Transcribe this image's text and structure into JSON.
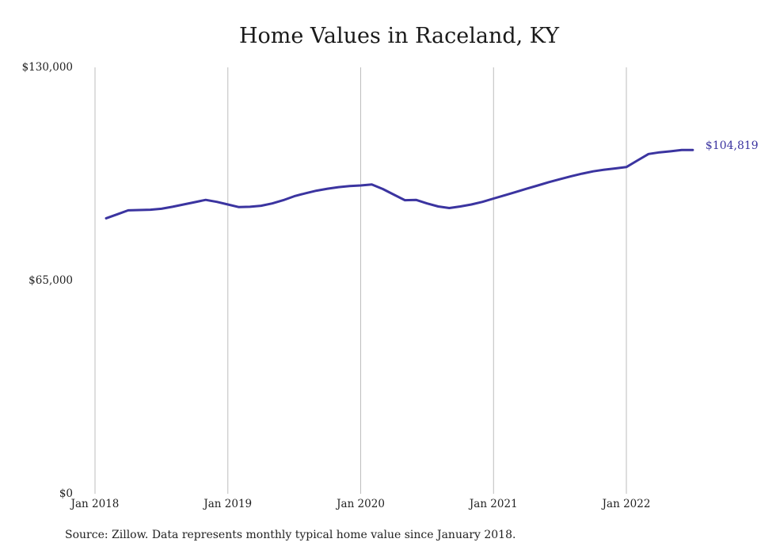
{
  "chart_data": {
    "type": "line",
    "title": "Home Values in Raceland, KY",
    "xlabel": "",
    "ylabel": "",
    "y_ticks": [
      "$0",
      "$65,000",
      "$130,000"
    ],
    "y_tick_values": [
      0,
      65000,
      130000
    ],
    "ylim": [
      0,
      130000
    ],
    "x_ticks": [
      "Jan 2018",
      "Jan 2019",
      "Jan 2020",
      "Jan 2021",
      "Jan 2022"
    ],
    "x_tick_dates": [
      "2018-01",
      "2019-01",
      "2020-01",
      "2021-01",
      "2022-01"
    ],
    "grid": "vertical",
    "line_color": "#3b34a0",
    "series": [
      {
        "dates": [
          "2018-02",
          "2018-03",
          "2018-04",
          "2018-05",
          "2018-06",
          "2018-07",
          "2018-08",
          "2018-09",
          "2018-10",
          "2018-11",
          "2018-12",
          "2019-01",
          "2019-02",
          "2019-03",
          "2019-04",
          "2019-05",
          "2019-06",
          "2019-07",
          "2019-08",
          "2019-09",
          "2019-10",
          "2019-11",
          "2019-12",
          "2020-01",
          "2020-02",
          "2020-03",
          "2020-04",
          "2020-05",
          "2020-06",
          "2020-07",
          "2020-08",
          "2020-09",
          "2020-10",
          "2020-11",
          "2020-12",
          "2021-01",
          "2021-02",
          "2021-03",
          "2021-04",
          "2021-05",
          "2021-06",
          "2021-07",
          "2021-08",
          "2021-09",
          "2021-10",
          "2021-11",
          "2021-12",
          "2022-01",
          "2022-02",
          "2022-03",
          "2022-04",
          "2022-05",
          "2022-06",
          "2022-07"
        ],
        "values": [
          84000,
          85200,
          86400,
          86500,
          86600,
          86900,
          87500,
          88200,
          88900,
          89600,
          89000,
          88200,
          87400,
          87500,
          87800,
          88500,
          89500,
          90700,
          91600,
          92400,
          93000,
          93500,
          93800,
          94000,
          94300,
          92900,
          91200,
          89500,
          89600,
          88500,
          87600,
          87100,
          87600,
          88200,
          89000,
          90000,
          91000,
          92000,
          93000,
          94000,
          95000,
          95900,
          96800,
          97600,
          98300,
          98800,
          99200,
          99600,
          101600,
          103600,
          104100,
          104400,
          104800,
          104819
        ]
      }
    ],
    "end_label": "$104,819"
  },
  "source_note": "Source: Zillow. Data represents monthly typical home value since January 2018."
}
